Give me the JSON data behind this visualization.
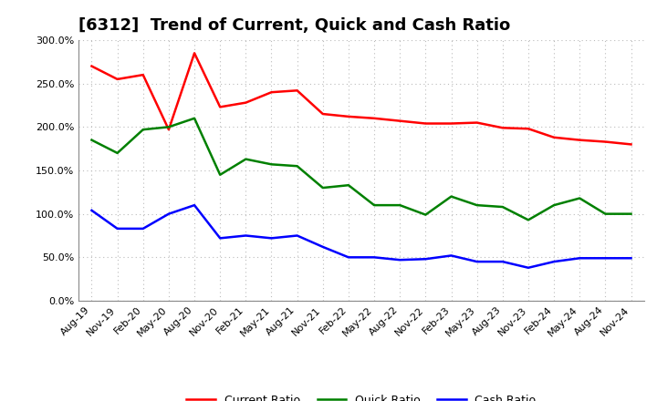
{
  "title": "[6312]  Trend of Current, Quick and Cash Ratio",
  "x_labels": [
    "Aug-19",
    "Nov-19",
    "Feb-20",
    "May-20",
    "Aug-20",
    "Nov-20",
    "Feb-21",
    "May-21",
    "Aug-21",
    "Nov-21",
    "Feb-22",
    "May-22",
    "Aug-22",
    "Nov-22",
    "Feb-23",
    "May-23",
    "Aug-23",
    "Nov-23",
    "Feb-24",
    "May-24",
    "Aug-24",
    "Nov-24"
  ],
  "current_ratio": [
    270,
    255,
    260,
    197,
    285,
    223,
    228,
    240,
    242,
    215,
    212,
    210,
    207,
    204,
    204,
    205,
    199,
    198,
    188,
    185,
    183,
    180
  ],
  "quick_ratio": [
    185,
    170,
    197,
    200,
    210,
    145,
    163,
    157,
    155,
    130,
    133,
    110,
    110,
    99,
    120,
    110,
    108,
    93,
    110,
    118,
    100,
    100
  ],
  "cash_ratio": [
    104,
    83,
    83,
    100,
    110,
    72,
    75,
    72,
    75,
    62,
    50,
    50,
    47,
    48,
    52,
    45,
    45,
    38,
    45,
    49,
    49,
    49
  ],
  "ylim": [
    0,
    300
  ],
  "yticks": [
    0,
    50,
    100,
    150,
    200,
    250,
    300
  ],
  "current_color": "#FF0000",
  "quick_color": "#008000",
  "cash_color": "#0000FF",
  "background_color": "#FFFFFF",
  "grid_color": "#BBBBBB",
  "legend_labels": [
    "Current Ratio",
    "Quick Ratio",
    "Cash Ratio"
  ],
  "title_fontsize": 13,
  "tick_fontsize": 8,
  "legend_fontsize": 9
}
